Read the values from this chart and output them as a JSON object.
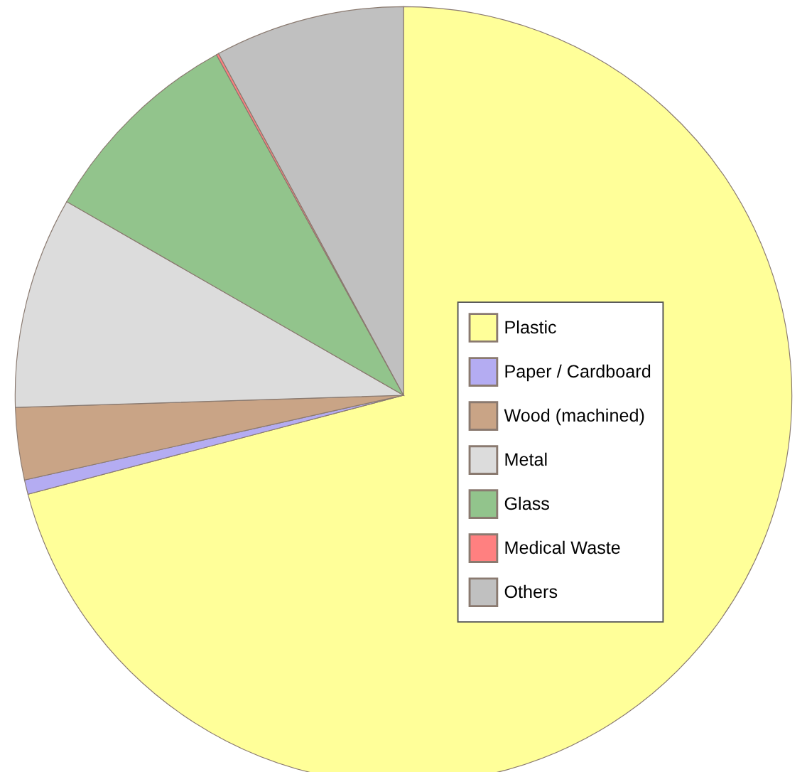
{
  "chart_data": {
    "type": "pie",
    "categories": [
      "Plastic",
      "Paper / Cardboard",
      "Wood (machined)",
      "Metal",
      "Glass",
      "Medical Waste",
      "Others"
    ],
    "values": [
      70.9,
      0.6,
      3.0,
      8.8,
      8.7,
      0.1,
      7.9
    ],
    "colors": [
      "#ffff99",
      "#b4acf2",
      "#c9a486",
      "#dcdcdc",
      "#92c48c",
      "#ff8080",
      "#c0c0c0"
    ],
    "legend": "right"
  }
}
